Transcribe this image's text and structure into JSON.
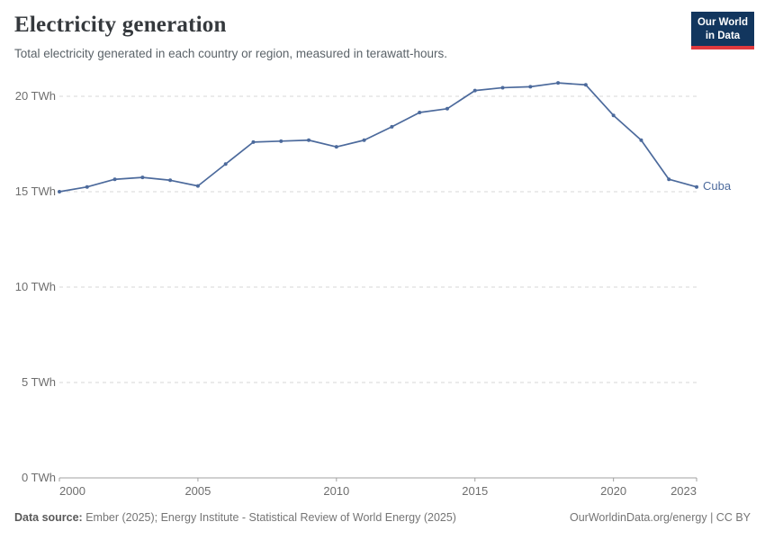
{
  "header": {
    "title": "Electricity generation",
    "subtitle": "Total electricity generated in each country or region, measured in terawatt-hours.",
    "logo": {
      "line1": "Our World",
      "line2": "in Data",
      "bg_color": "#12365e",
      "accent_color": "#e0393e",
      "text_color": "#ffffff"
    }
  },
  "chart_data": {
    "type": "line",
    "title": "Electricity generation",
    "subtitle": "Total electricity generated in each country or region, measured in terawatt-hours.",
    "unit": "TWh",
    "grid": "horizontal-dashed",
    "legend_position": "end-of-line-label",
    "x_range": [
      2000,
      2023
    ],
    "y_range": [
      0,
      20
    ],
    "x": [
      2000,
      2001,
      2002,
      2003,
      2004,
      2005,
      2006,
      2007,
      2008,
      2009,
      2010,
      2011,
      2012,
      2013,
      2014,
      2015,
      2016,
      2017,
      2018,
      2019,
      2020,
      2021,
      2022,
      2023
    ],
    "series": [
      {
        "name": "Cuba",
        "color": "#4C6A9C",
        "values": [
          15.0,
          15.25,
          15.65,
          15.75,
          15.6,
          15.3,
          16.45,
          17.6,
          17.65,
          17.7,
          17.35,
          17.7,
          18.4,
          19.15,
          19.35,
          20.3,
          20.45,
          20.5,
          20.7,
          20.6,
          19.0,
          17.7,
          15.65,
          15.25
        ]
      }
    ],
    "yticks": [
      {
        "value": 0,
        "label": "0 TWh"
      },
      {
        "value": 5,
        "label": "5 TWh"
      },
      {
        "value": 10,
        "label": "10 TWh"
      },
      {
        "value": 15,
        "label": "15 TWh"
      },
      {
        "value": 20,
        "label": "20 TWh"
      }
    ],
    "xticks": [
      {
        "value": 2000,
        "label": "2000",
        "anchor": "start",
        "tick": true
      },
      {
        "value": 2005,
        "label": "2005",
        "anchor": "middle",
        "tick": true
      },
      {
        "value": 2010,
        "label": "2010",
        "anchor": "middle",
        "tick": true
      },
      {
        "value": 2015,
        "label": "2015",
        "anchor": "middle",
        "tick": true
      },
      {
        "value": 2020,
        "label": "2020",
        "anchor": "middle",
        "tick": true
      },
      {
        "value": 2023,
        "label": "2023",
        "anchor": "end",
        "tick": true
      }
    ],
    "colors": {
      "gridline": "#d7d7d7",
      "axis": "#a0a0a0",
      "tick_label": "#6e6e6e"
    }
  },
  "footer": {
    "source_label": "Data source:",
    "source_text": "Ember (2025); Energy Institute - Statistical Review of World Energy (2025)",
    "credit": "OurWorldinData.org/energy | CC BY"
  }
}
